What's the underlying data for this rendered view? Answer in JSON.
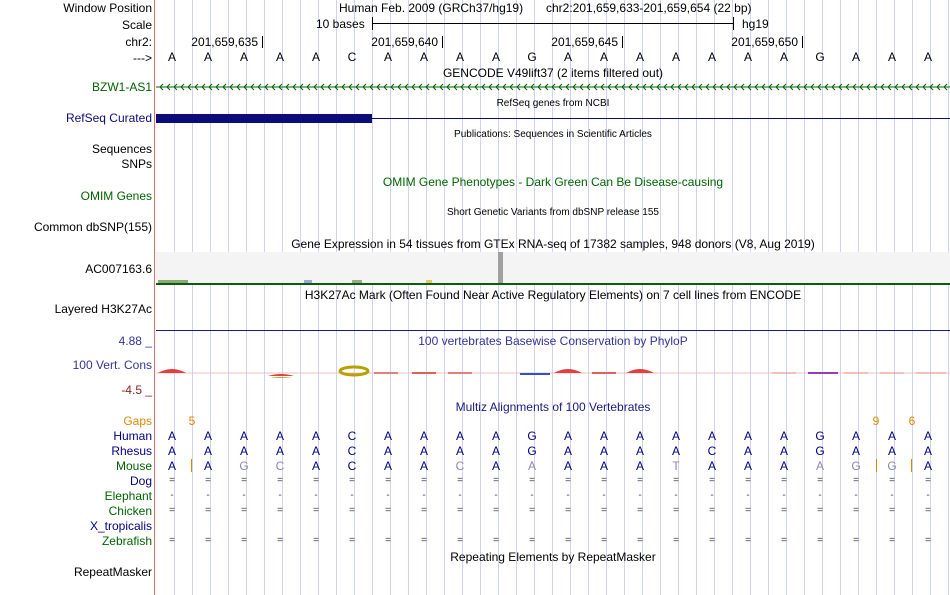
{
  "header": {
    "window_position_label": "Window Position",
    "scale_label": "Scale",
    "chrom_label": "chr2:",
    "arrow_label": "--->",
    "assembly": "Human Feb. 2009 (GRCh37/hg19)",
    "position": "chr2:201,659,633-201,659,654 (22 bp)",
    "scale_text": "10 bases",
    "db": "hg19",
    "coords": [
      "201,659,635",
      "201,659,640",
      "201,659,645",
      "201,659,650"
    ]
  },
  "sequence": [
    "A",
    "A",
    "A",
    "A",
    "A",
    "C",
    "A",
    "A",
    "A",
    "A",
    "G",
    "A",
    "A",
    "A",
    "A",
    "A",
    "A",
    "A",
    "G",
    "A",
    "A",
    "A"
  ],
  "tracks": {
    "gencode": {
      "title": "GENCODE V49lift37 (2 items filtered out)",
      "item": "BZW1-AS1"
    },
    "refseq": {
      "title": "RefSeq genes from NCBI",
      "label": "RefSeq Curated"
    },
    "publications": {
      "title": "Publications: Sequences in Scientific Articles",
      "sequences_label": "Sequences",
      "snps_label": "SNPs"
    },
    "omim": {
      "title": "OMIM Gene Phenotypes - Dark Green Can Be Disease-causing",
      "label": "OMIM Genes"
    },
    "dbsnp": {
      "title": "Short Genetic Variants from dbSNP release 155",
      "label": "Common dbSNP(155)"
    },
    "gtex": {
      "title": "Gene Expression in 54 tissues from GTEx RNA-seq of 17382 samples, 948 donors (V8, Aug 2019)",
      "label": "AC007163.6"
    },
    "h3k27ac": {
      "title": "H3K27Ac Mark (Often Found Near Active Regulatory Elements) on 7 cell lines from ENCODE",
      "label": "Layered H3K27Ac"
    },
    "phylop": {
      "title": "100 vertebrates Basewise Conservation by PhyloP",
      "label": "100 Vert. Cons",
      "max": "4.88 _",
      "min": "-4.5 _"
    },
    "multiz": {
      "title": "Multiz Alignments of 100 Vertebrates",
      "gaps_label": "Gaps",
      "gaps": [
        {
          "col": 0,
          "val": "5"
        },
        {
          "col": 19,
          "val": "9"
        },
        {
          "col": 20,
          "val": "6"
        }
      ],
      "species": [
        {
          "name": "Human",
          "color": "#000080",
          "bases": [
            "A",
            "A",
            "A",
            "A",
            "A",
            "C",
            "A",
            "A",
            "A",
            "A",
            "G",
            "A",
            "A",
            "A",
            "A",
            "A",
            "A",
            "A",
            "G",
            "A",
            "A",
            "A"
          ]
        },
        {
          "name": "Rhesus",
          "color": "#000080",
          "bases": [
            "A",
            "A",
            "A",
            "A",
            "A",
            "C",
            "A",
            "A",
            "A",
            "A",
            "G",
            "A",
            "A",
            "A",
            "A",
            "C",
            "A",
            "A",
            "G",
            "A",
            "A",
            "A"
          ]
        },
        {
          "name": "Mouse",
          "color": "#006400",
          "bases": [
            "A",
            "A",
            "G",
            "C",
            "A",
            "C",
            "A",
            "A",
            "C",
            "A",
            "A",
            "A",
            "A",
            "A",
            "T",
            "A",
            "A",
            "A",
            "A",
            "G",
            "G",
            "A"
          ]
        },
        {
          "name": "Dog",
          "color": "#000080",
          "bases": [
            "=",
            "=",
            "=",
            "=",
            "=",
            "=",
            "=",
            "=",
            "=",
            "=",
            "=",
            "=",
            "=",
            "=",
            "=",
            "=",
            "=",
            "=",
            "=",
            "=",
            "=",
            "="
          ]
        },
        {
          "name": "Elephant",
          "color": "#006400",
          "bases": [
            "-",
            "-",
            "-",
            "-",
            "-",
            "-",
            "-",
            "-",
            "-",
            "-",
            "-",
            "-",
            "-",
            "-",
            "-",
            "-",
            "-",
            "-",
            "-",
            "-",
            "-",
            "-"
          ]
        },
        {
          "name": "Chicken",
          "color": "#006400",
          "bases": [
            "=",
            "=",
            "=",
            "=",
            "=",
            "=",
            "=",
            "=",
            "=",
            "=",
            "=",
            "=",
            "=",
            "=",
            "=",
            "=",
            "=",
            "=",
            "=",
            "=",
            "=",
            "="
          ]
        },
        {
          "name": "X_tropicalis",
          "color": "#000080",
          "bases": [
            "",
            "",
            "",
            "",
            "",
            "",
            "",
            "",
            "",
            "",
            "",
            "",
            "",
            "",
            "",
            "",
            "",
            "",
            "",
            "",
            "",
            ""
          ]
        },
        {
          "name": "Zebrafish",
          "color": "#006400",
          "bases": [
            "=",
            "=",
            "=",
            "=",
            "=",
            "=",
            "=",
            "=",
            "=",
            "=",
            "=",
            "=",
            "=",
            "=",
            "=",
            "=",
            "=",
            "=",
            "=",
            "=",
            "=",
            "="
          ]
        }
      ]
    },
    "repeatmasker": {
      "title": "Repeating Elements by RepeatMasker",
      "label": "RepeatMasker"
    }
  },
  "colors": {
    "gencode": "#006400",
    "refseq": "#0c0c78",
    "omim": "#006400",
    "phylop": "#333399",
    "gaps": "#dd8800",
    "bg_grid": "#cdd3f0"
  }
}
